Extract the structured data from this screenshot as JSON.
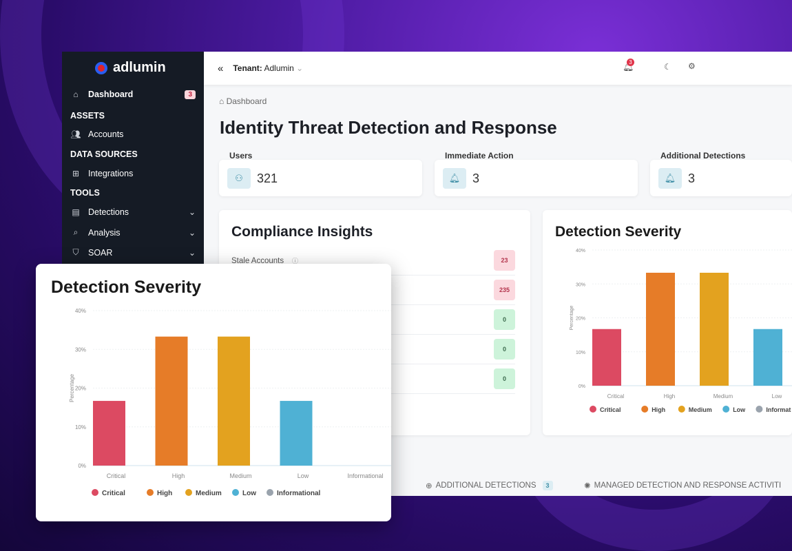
{
  "brand": {
    "name": "adlumin"
  },
  "sidebar": {
    "dashboard": {
      "label": "Dashboard",
      "badge": "3"
    },
    "sections": [
      {
        "title": "ASSETS",
        "items": [
          {
            "label": "Accounts",
            "icon": "users-icon"
          }
        ]
      },
      {
        "title": "DATA SOURCES",
        "items": [
          {
            "label": "Integrations",
            "icon": "integrations-icon"
          }
        ]
      },
      {
        "title": "TOOLS",
        "items": [
          {
            "label": "Detections",
            "icon": "file-icon"
          },
          {
            "label": "Analysis",
            "icon": "search-icon"
          },
          {
            "label": "SOAR",
            "icon": "shield-icon"
          }
        ]
      }
    ]
  },
  "header": {
    "tenant_label": "Tenant:",
    "tenant_value": "Adlumin",
    "notification_count": "3"
  },
  "breadcrumb": "Dashboard",
  "page_title": "Identity Threat Detection and Response",
  "stats": [
    {
      "label": "Users",
      "value": "321",
      "icon": "user-icon"
    },
    {
      "label": "Immediate Action",
      "value": "3",
      "icon": "bell-icon"
    },
    {
      "label": "Additional Detections",
      "value": "3",
      "icon": "bell-icon"
    }
  ],
  "compliance": {
    "title": "Compliance Insights",
    "rows": [
      {
        "label": "Stale Accounts",
        "value": "23",
        "status": "bad"
      },
      {
        "label": "",
        "value": "235",
        "status": "bad"
      },
      {
        "label": "",
        "value": "0",
        "status": "good"
      },
      {
        "label": "",
        "value": "0",
        "status": "good"
      },
      {
        "label": "",
        "value": "0",
        "status": "good"
      }
    ]
  },
  "tabs": [
    {
      "label": "ADDITIONAL DETECTIONS",
      "badge": "3"
    },
    {
      "label": "MANAGED DETECTION AND RESPONSE ACTIVITI"
    }
  ],
  "colors": {
    "critical": "#dc4a62",
    "high": "#e67c28",
    "medium": "#e3a21f",
    "low": "#4fb1d4",
    "informational": "#9aa3ad",
    "sidebar": "#151b25"
  },
  "chart_data": [
    {
      "type": "bar",
      "title": "Detection Severity",
      "ylabel": "Percentage",
      "xlabel": "",
      "categories": [
        "Critical",
        "High",
        "Medium",
        "Low",
        "Informational"
      ],
      "values": [
        16.7,
        33.3,
        33.3,
        16.7,
        0
      ],
      "ylim": [
        0,
        40
      ],
      "yticks": [
        "0%",
        "10%",
        "20%",
        "30%",
        "40%"
      ],
      "legend": [
        "Critical",
        "High",
        "Medium",
        "Low",
        "Informational"
      ],
      "legend_position": "bottom",
      "grid": true
    },
    {
      "type": "bar",
      "title": "Detection Severity",
      "ylabel": "Percentage",
      "xlabel": "",
      "categories": [
        "Critical",
        "High",
        "Medium",
        "Low",
        "Informational"
      ],
      "values": [
        16.7,
        33.3,
        33.3,
        16.7,
        0
      ],
      "ylim": [
        0,
        40
      ],
      "yticks": [
        "0%",
        "10%",
        "20%",
        "30%",
        "40%"
      ],
      "legend": [
        "Critical",
        "High",
        "Medium",
        "Low",
        "Informat"
      ],
      "legend_position": "bottom",
      "grid": true
    }
  ]
}
